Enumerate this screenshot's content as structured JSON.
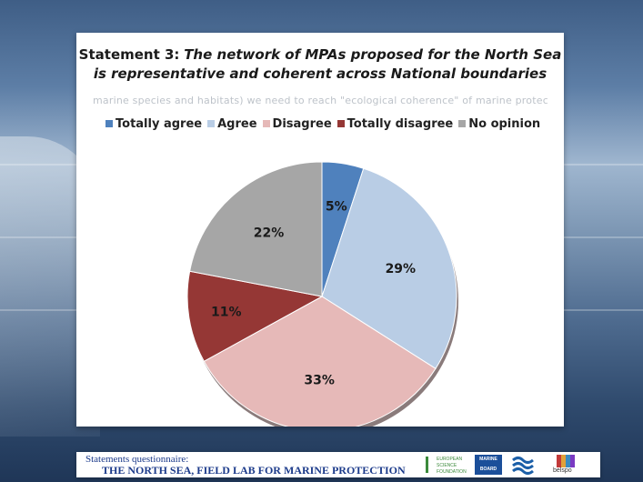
{
  "slide": {
    "title_bold": "Statement 3:",
    "title_italic": "The network of MPAs proposed for the North Sea is representative and coherent across National boundaries",
    "ghost_text": "marine species and habitats) we need to reach \"ecological coherence\" of marine protected areas"
  },
  "chart_data": {
    "type": "pie",
    "title": "",
    "legend_position": "top",
    "categories": [
      "Totally agree",
      "Agree",
      "Disagree",
      "Totally disagree",
      "No opinion"
    ],
    "values": [
      5,
      29,
      33,
      11,
      22
    ],
    "value_labels": [
      "5%",
      "29%",
      "33%",
      "11%",
      "22%"
    ],
    "colors": [
      "#4f81bd",
      "#b9cde5",
      "#e6b9b8",
      "#953735",
      "#a6a6a6"
    ]
  },
  "footer": {
    "line1": "Statements questionnaire:",
    "line2": "THE NORTH SEA, FIELD LAB FOR MARINE PROTECTION",
    "esf_logo_lines": [
      "EUROPEAN",
      "SCIENCE",
      "FOUNDATION"
    ],
    "marine_board_lines": [
      "MARINE",
      "BOARD"
    ],
    "belspo_text": "belspo"
  }
}
